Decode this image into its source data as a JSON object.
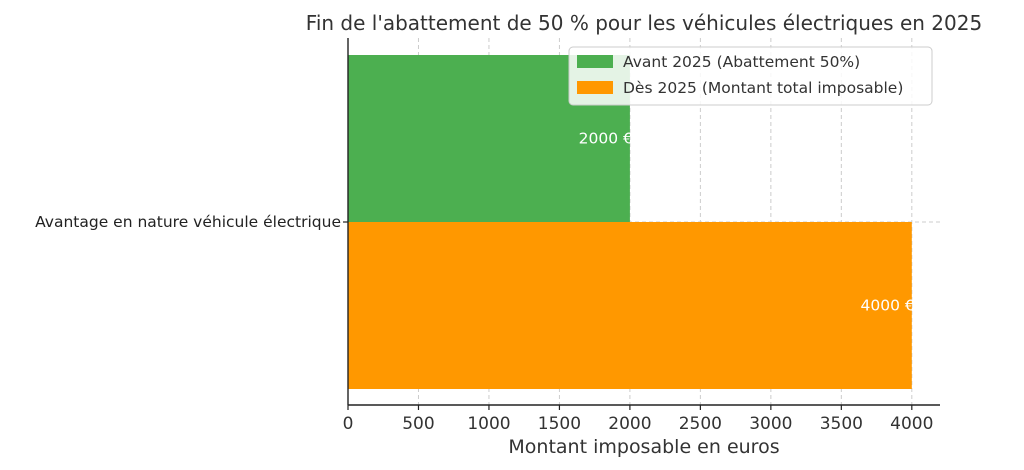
{
  "chart_data": {
    "type": "bar",
    "orientation": "horizontal",
    "title": "Fin de l'abattement de 50 % pour les véhicules électriques en 2025",
    "xlabel": "Montant imposable en euros",
    "ylabel": "",
    "xlim": [
      0,
      4200
    ],
    "xticks": [
      0,
      500,
      1000,
      1500,
      2000,
      2500,
      3000,
      3500,
      4000
    ],
    "grid": true,
    "legend_position": "top-right",
    "categories": [
      "Avantage en nature véhicule électrique"
    ],
    "series": [
      {
        "name": "Avant 2025 (Abattement 50%)",
        "values": [
          2000
        ],
        "label": "2000 €",
        "color": "#4caf50"
      },
      {
        "name": "Dès 2025 (Montant total imposable)",
        "values": [
          4000
        ],
        "label": "4000 €",
        "color": "#ff9800"
      }
    ]
  }
}
